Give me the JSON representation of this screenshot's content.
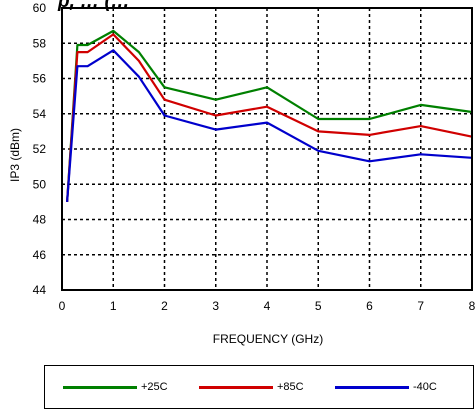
{
  "chart_data": {
    "type": "line",
    "title": "p, … (…",
    "xlabel": "FREQUENCY (GHz)",
    "ylabel": "IP3 (dBm)",
    "xlim": [
      0,
      8
    ],
    "ylim": [
      44,
      60
    ],
    "x_ticks": [
      "0",
      "1",
      "2",
      "3",
      "4",
      "5",
      "6",
      "7",
      "8"
    ],
    "y_ticks": [
      "44",
      "46",
      "48",
      "50",
      "52",
      "54",
      "56",
      "58",
      "60"
    ],
    "grid": true,
    "legend_position": "bottom",
    "series": [
      {
        "name": "+25C",
        "color": "#008000",
        "x": [
          0.1,
          0.3,
          0.5,
          1.0,
          1.5,
          2.0,
          3.0,
          4.0,
          5.0,
          6.0,
          7.0,
          8.0
        ],
        "y": [
          49.0,
          57.9,
          57.9,
          58.7,
          57.5,
          55.5,
          54.8,
          55.5,
          53.7,
          53.7,
          54.5,
          54.1
        ]
      },
      {
        "name": "+85C",
        "color": "#d00000",
        "x": [
          0.1,
          0.3,
          0.5,
          1.0,
          1.5,
          2.0,
          3.0,
          4.0,
          5.0,
          6.0,
          7.0,
          8.0
        ],
        "y": [
          49.0,
          57.5,
          57.5,
          58.5,
          57.0,
          54.8,
          53.9,
          54.4,
          53.0,
          52.8,
          53.3,
          52.7
        ]
      },
      {
        "name": "-40C",
        "color": "#0000cc",
        "x": [
          0.1,
          0.3,
          0.5,
          1.0,
          1.5,
          2.0,
          3.0,
          4.0,
          5.0,
          6.0,
          7.0,
          8.0
        ],
        "y": [
          49.0,
          56.7,
          56.7,
          57.6,
          56.1,
          53.9,
          53.1,
          53.5,
          51.9,
          51.3,
          51.7,
          51.5
        ]
      }
    ]
  }
}
